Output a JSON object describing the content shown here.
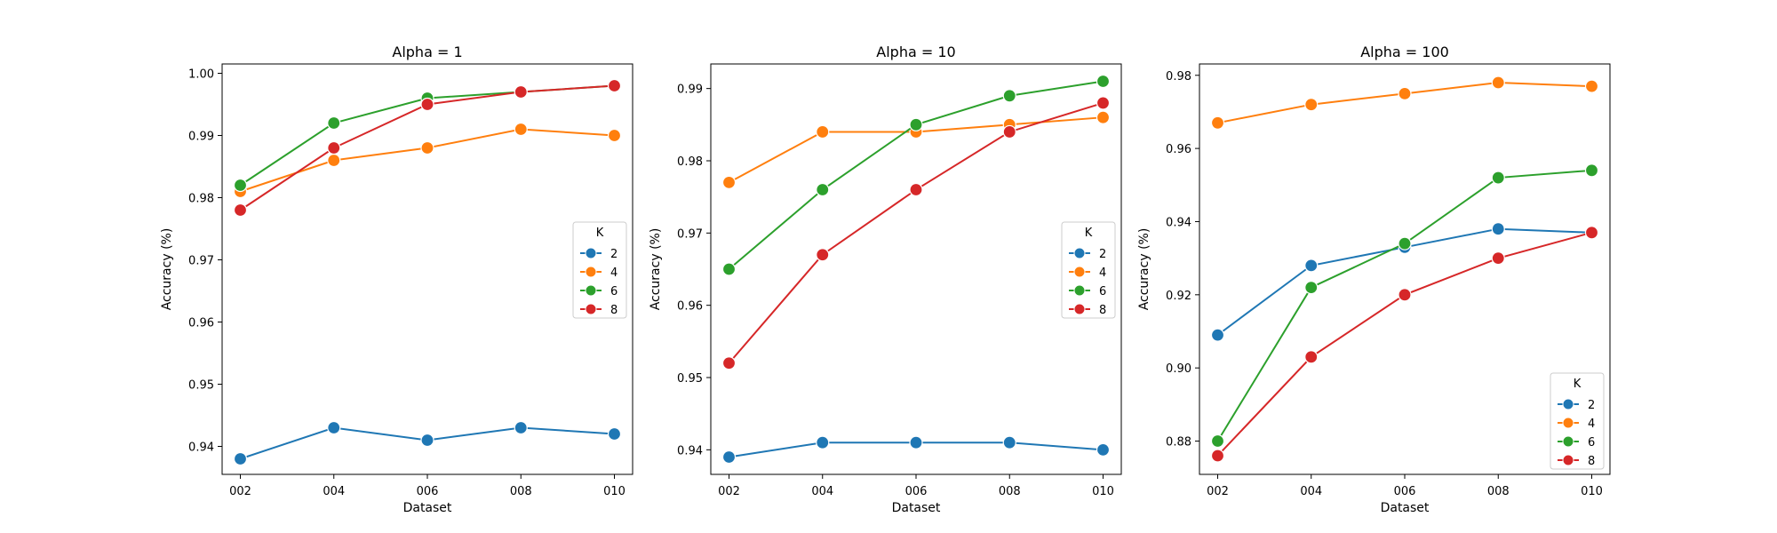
{
  "chart_data": [
    {
      "type": "line",
      "title": "Alpha = 1",
      "xlabel": "Dataset",
      "ylabel": "Accuracy (%)",
      "categories": [
        "002",
        "004",
        "006",
        "008",
        "010"
      ],
      "ylim": [
        0.9355,
        1.0015
      ],
      "yticks": [
        "0.94",
        "0.95",
        "0.96",
        "0.97",
        "0.98",
        "0.99",
        "1.00"
      ],
      "ytick_values": [
        0.94,
        0.95,
        0.96,
        0.97,
        0.98,
        0.99,
        1.0
      ],
      "legend": {
        "title": "K",
        "placement": "center-right"
      },
      "series": [
        {
          "name": "2",
          "color": "#1f77b4",
          "values": [
            0.938,
            0.943,
            0.941,
            0.943,
            0.942
          ]
        },
        {
          "name": "4",
          "color": "#ff7f0e",
          "values": [
            0.981,
            0.986,
            0.988,
            0.991,
            0.99
          ]
        },
        {
          "name": "6",
          "color": "#2ca02c",
          "values": [
            0.982,
            0.992,
            0.996,
            0.997,
            0.998
          ]
        },
        {
          "name": "8",
          "color": "#d62728",
          "values": [
            0.978,
            0.988,
            0.995,
            0.997,
            0.998
          ]
        }
      ]
    },
    {
      "type": "line",
      "title": "Alpha = 10",
      "xlabel": "Dataset",
      "ylabel": "Accuracy (%)",
      "categories": [
        "002",
        "004",
        "006",
        "008",
        "010"
      ],
      "ylim": [
        0.9366,
        0.9934
      ],
      "yticks": [
        "0.94",
        "0.95",
        "0.96",
        "0.97",
        "0.98",
        "0.99"
      ],
      "ytick_values": [
        0.94,
        0.95,
        0.96,
        0.97,
        0.98,
        0.99
      ],
      "legend": {
        "title": "K",
        "placement": "center-right"
      },
      "series": [
        {
          "name": "2",
          "color": "#1f77b4",
          "values": [
            0.939,
            0.941,
            0.941,
            0.941,
            0.94
          ]
        },
        {
          "name": "4",
          "color": "#ff7f0e",
          "values": [
            0.977,
            0.984,
            0.984,
            0.985,
            0.986
          ]
        },
        {
          "name": "6",
          "color": "#2ca02c",
          "values": [
            0.965,
            0.976,
            0.985,
            0.989,
            0.991
          ]
        },
        {
          "name": "8",
          "color": "#d62728",
          "values": [
            0.952,
            0.967,
            0.976,
            0.984,
            0.988
          ]
        }
      ]
    },
    {
      "type": "line",
      "title": "Alpha = 100",
      "xlabel": "Dataset",
      "ylabel": "Accuracy (%)",
      "categories": [
        "002",
        "004",
        "006",
        "008",
        "010"
      ],
      "ylim": [
        0.8709,
        0.9831
      ],
      "yticks": [
        "0.88",
        "0.90",
        "0.92",
        "0.94",
        "0.96",
        "0.98"
      ],
      "ytick_values": [
        0.88,
        0.9,
        0.92,
        0.94,
        0.96,
        0.98
      ],
      "legend": {
        "title": "K",
        "placement": "lower-right"
      },
      "series": [
        {
          "name": "2",
          "color": "#1f77b4",
          "values": [
            0.909,
            0.928,
            0.933,
            0.938,
            0.937
          ]
        },
        {
          "name": "4",
          "color": "#ff7f0e",
          "values": [
            0.967,
            0.972,
            0.975,
            0.978,
            0.977
          ]
        },
        {
          "name": "6",
          "color": "#2ca02c",
          "values": [
            0.88,
            0.922,
            0.934,
            0.952,
            0.954
          ]
        },
        {
          "name": "8",
          "color": "#d62728",
          "values": [
            0.876,
            0.903,
            0.92,
            0.93,
            0.937
          ]
        }
      ]
    }
  ]
}
